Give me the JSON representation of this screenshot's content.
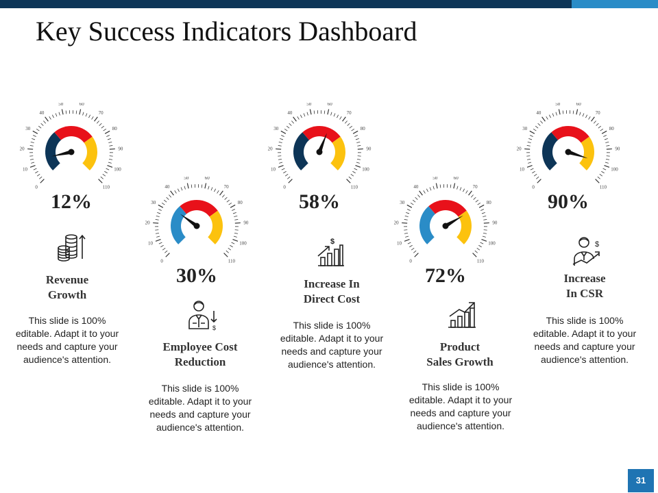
{
  "title": "Key Success Indicators Dashboard",
  "slide_number": "31",
  "gauge_ticks": [
    "0",
    "10",
    "20",
    "30",
    "40",
    "50",
    "60",
    "70",
    "80",
    "90",
    "100",
    "110"
  ],
  "colors": {
    "navy": "#0d3557",
    "blue": "#2a8cc7",
    "red": "#e8111a",
    "yellow": "#fcc20e",
    "needle": "#111111"
  },
  "indicators": [
    {
      "value": "12%",
      "needle_percent": 12,
      "heading": "Revenue\nGrowth",
      "icon": "coins-stack-icon",
      "description": "This slide is 100% editable. Adapt it to your needs and capture your audience's attention."
    },
    {
      "value": "30%",
      "needle_percent": 30,
      "heading": "Employee Cost\nReduction",
      "icon": "employee-cost-icon",
      "description": "This slide is 100% editable. Adapt it to your needs and capture your audience's attention."
    },
    {
      "value": "58%",
      "needle_percent": 58,
      "heading": "Increase In\nDirect Cost",
      "icon": "bar-chart-dollar-icon",
      "description": "This slide is 100% editable. Adapt it to your needs and capture your audience's attention."
    },
    {
      "value": "72%",
      "needle_percent": 72,
      "heading": "Product\nSales Growth",
      "icon": "growth-chart-icon",
      "description": "This slide is 100% editable. Adapt it to your needs and capture your audience's attention."
    },
    {
      "value": "90%",
      "needle_percent": 90,
      "heading": "Increase\nIn CSR",
      "icon": "person-growth-icon",
      "description": "This slide is 100% editable. Adapt it to your needs and capture your audience's attention."
    }
  ]
}
